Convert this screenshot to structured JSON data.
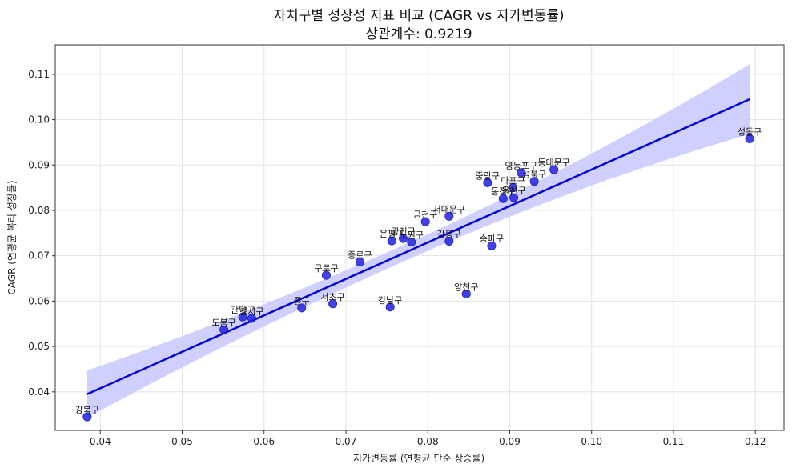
{
  "chart_data": {
    "type": "scatter",
    "title": "자치구별 성장성 지표 비교 (CAGR vs 지가변동률)",
    "subtitle": "상관계수: 0.9219",
    "xlabel": "지가변동률 (연평균 단순 상승률)",
    "ylabel": "CAGR (연평균 복리 성장률)",
    "xlim": [
      0.0345,
      0.1235
    ],
    "ylim": [
      0.0315,
      0.1165
    ],
    "xticks": [
      0.04,
      0.05,
      0.06,
      0.07,
      0.08,
      0.09,
      0.1,
      0.11,
      0.12
    ],
    "xtick_labels": [
      "0.04",
      "0.05",
      "0.06",
      "0.07",
      "0.08",
      "0.09",
      "0.10",
      "0.11",
      "0.12"
    ],
    "yticks": [
      0.04,
      0.05,
      0.06,
      0.07,
      0.08,
      0.09,
      0.1,
      0.11
    ],
    "ytick_labels": [
      "0.04",
      "0.05",
      "0.06",
      "0.07",
      "0.08",
      "0.09",
      "0.10",
      "0.11"
    ],
    "grid": true,
    "point_color": "#2020e0",
    "line_color": "#0000dd",
    "band_color": "#c8c8ff",
    "regression": {
      "x": [
        0.0384,
        0.1193
      ],
      "y": [
        0.0395,
        0.1045
      ],
      "band_half_width_ends": [
        0.0052,
        0.0077
      ],
      "band_half_width_mid": 0.0018
    },
    "points": [
      {
        "label": "강북구",
        "x": 0.0384,
        "y": 0.0345
      },
      {
        "label": "도봉구",
        "x": 0.0551,
        "y": 0.0537
      },
      {
        "label": "관악구",
        "x": 0.0574,
        "y": 0.0565
      },
      {
        "label": "강서구",
        "x": 0.0585,
        "y": 0.0562
      },
      {
        "label": "중구",
        "x": 0.0646,
        "y": 0.0585
      },
      {
        "label": "서초구",
        "x": 0.0684,
        "y": 0.0594
      },
      {
        "label": "구로구",
        "x": 0.0676,
        "y": 0.0657
      },
      {
        "label": "종로구",
        "x": 0.0717,
        "y": 0.0686
      },
      {
        "label": "강남구",
        "x": 0.0754,
        "y": 0.0587
      },
      {
        "label": "은평구",
        "x": 0.0756,
        "y": 0.0733
      },
      {
        "label": "광진구",
        "x": 0.077,
        "y": 0.0738
      },
      {
        "label": "노원구",
        "x": 0.078,
        "y": 0.073
      },
      {
        "label": "금천구",
        "x": 0.0797,
        "y": 0.0775
      },
      {
        "label": "서대문구",
        "x": 0.0826,
        "y": 0.0787
      },
      {
        "label": "강동구",
        "x": 0.0826,
        "y": 0.0732
      },
      {
        "label": "양천구",
        "x": 0.0847,
        "y": 0.0616
      },
      {
        "label": "송파구",
        "x": 0.0878,
        "y": 0.0722
      },
      {
        "label": "중랑구",
        "x": 0.0873,
        "y": 0.0861
      },
      {
        "label": "동작구",
        "x": 0.0892,
        "y": 0.0826
      },
      {
        "label": "용산구",
        "x": 0.0905,
        "y": 0.0828
      },
      {
        "label": "마포구",
        "x": 0.0904,
        "y": 0.085
      },
      {
        "label": "영등포구",
        "x": 0.0914,
        "y": 0.0883
      },
      {
        "label": "성북구",
        "x": 0.093,
        "y": 0.0864
      },
      {
        "label": "동대문구",
        "x": 0.0954,
        "y": 0.089
      },
      {
        "label": "성동구",
        "x": 0.1193,
        "y": 0.0958
      }
    ]
  }
}
